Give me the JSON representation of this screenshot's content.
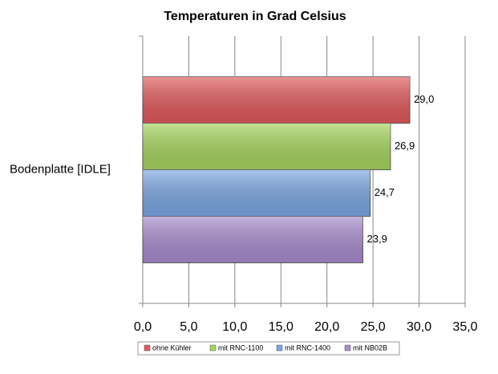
{
  "chart_data": {
    "type": "bar",
    "orientation": "horizontal",
    "title": "Temperaturen in Grad Celsius",
    "categories": [
      "Bodenplatte [IDLE]"
    ],
    "series": [
      {
        "name": "ohne Kühler",
        "color": "#e0585b",
        "values": [
          29.0
        ],
        "value_labels": [
          "29,0"
        ]
      },
      {
        "name": "mit RNC-1100",
        "color": "#a6d45c",
        "values": [
          26.9
        ],
        "value_labels": [
          "26,9"
        ]
      },
      {
        "name": "mit RNC-1400",
        "color": "#7aa6e2",
        "values": [
          24.7
        ],
        "value_labels": [
          "24,7"
        ]
      },
      {
        "name": "mit NB02B",
        "color": "#a78bcd",
        "values": [
          23.9
        ],
        "value_labels": [
          "23,9"
        ]
      }
    ],
    "xlim": [
      0,
      35
    ],
    "xticks": [
      {
        "value": 0,
        "label": "0,0"
      },
      {
        "value": 5,
        "label": "5,0"
      },
      {
        "value": 10,
        "label": "10,0"
      },
      {
        "value": 15,
        "label": "15,0"
      },
      {
        "value": 20,
        "label": "20,0"
      },
      {
        "value": 25,
        "label": "25,0"
      },
      {
        "value": 30,
        "label": "30,0"
      },
      {
        "value": 35,
        "label": "35,0"
      }
    ],
    "grid": true,
    "legend": "bottom"
  }
}
